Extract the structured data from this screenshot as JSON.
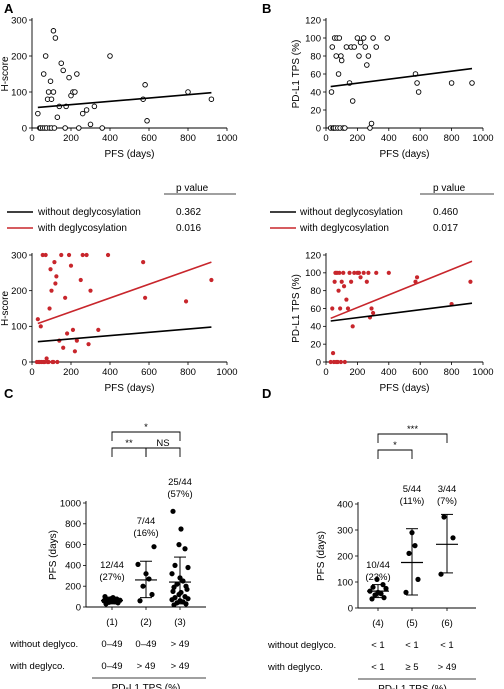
{
  "panels": [
    {
      "letter": "A"
    },
    {
      "letter": "B"
    },
    {
      "letter": "C"
    },
    {
      "letter": "D"
    }
  ],
  "legend": {
    "pvalue_header": "p value",
    "without_label": "without deglycosylation",
    "with_label": "with deglycosylation",
    "A": {
      "without_p": "0.362",
      "with_p": "0.016"
    },
    "B": {
      "without_p": "0.460",
      "with_p": "0.017"
    }
  },
  "colors": {
    "black": "#000000",
    "red": "#c8262c"
  },
  "chart_data": [
    {
      "id": "A-top",
      "type": "scatter",
      "xlabel": "PFS (days)",
      "ylabel": "H-score",
      "xlim": [
        0,
        1000
      ],
      "ylim": [
        0,
        300
      ],
      "xticks": [
        0,
        200,
        400,
        600,
        800,
        1000
      ],
      "yticks": [
        0,
        100,
        200,
        300
      ],
      "marker": "open",
      "points": [
        [
          30,
          40
        ],
        [
          40,
          0
        ],
        [
          45,
          0
        ],
        [
          55,
          0
        ],
        [
          60,
          150
        ],
        [
          65,
          0
        ],
        [
          70,
          200
        ],
        [
          75,
          0
        ],
        [
          80,
          80
        ],
        [
          85,
          100
        ],
        [
          90,
          0
        ],
        [
          95,
          130
        ],
        [
          100,
          0
        ],
        [
          100,
          80
        ],
        [
          110,
          100
        ],
        [
          110,
          270
        ],
        [
          115,
          0
        ],
        [
          120,
          250
        ],
        [
          130,
          30
        ],
        [
          140,
          60
        ],
        [
          150,
          180
        ],
        [
          160,
          160
        ],
        [
          170,
          0
        ],
        [
          175,
          60
        ],
        [
          190,
          140
        ],
        [
          200,
          90
        ],
        [
          210,
          100
        ],
        [
          220,
          100
        ],
        [
          230,
          150
        ],
        [
          240,
          0
        ],
        [
          260,
          40
        ],
        [
          280,
          50
        ],
        [
          300,
          10
        ],
        [
          320,
          60
        ],
        [
          360,
          0
        ],
        [
          400,
          200
        ],
        [
          570,
          80
        ],
        [
          580,
          120
        ],
        [
          590,
          20
        ],
        [
          800,
          100
        ],
        [
          920,
          80
        ]
      ],
      "fit": {
        "x": [
          30,
          920
        ],
        "y": [
          57,
          98
        ]
      }
    },
    {
      "id": "B-top",
      "type": "scatter",
      "xlabel": "PFS (days)",
      "ylabel": "PD-L1 TPS (%)",
      "xlim": [
        0,
        1000
      ],
      "ylim": [
        0,
        120
      ],
      "xticks": [
        0,
        200,
        400,
        600,
        800,
        1000
      ],
      "yticks": [
        0,
        20,
        40,
        60,
        80,
        100,
        120
      ],
      "marker": "open",
      "points": [
        [
          30,
          0
        ],
        [
          35,
          40
        ],
        [
          40,
          90
        ],
        [
          45,
          0
        ],
        [
          50,
          0
        ],
        [
          55,
          100
        ],
        [
          60,
          0
        ],
        [
          65,
          80
        ],
        [
          70,
          100
        ],
        [
          75,
          0
        ],
        [
          80,
          60
        ],
        [
          85,
          100
        ],
        [
          90,
          0
        ],
        [
          95,
          80
        ],
        [
          100,
          75
        ],
        [
          110,
          0
        ],
        [
          120,
          0
        ],
        [
          130,
          90
        ],
        [
          150,
          50
        ],
        [
          160,
          90
        ],
        [
          170,
          30
        ],
        [
          180,
          90
        ],
        [
          200,
          100
        ],
        [
          210,
          80
        ],
        [
          220,
          95
        ],
        [
          240,
          100
        ],
        [
          250,
          90
        ],
        [
          260,
          70
        ],
        [
          270,
          80
        ],
        [
          280,
          0
        ],
        [
          290,
          5
        ],
        [
          300,
          100
        ],
        [
          320,
          90
        ],
        [
          390,
          100
        ],
        [
          570,
          60
        ],
        [
          580,
          50
        ],
        [
          590,
          40
        ],
        [
          800,
          50
        ],
        [
          930,
          50
        ]
      ],
      "fit": {
        "x": [
          30,
          930
        ],
        "y": [
          46,
          66
        ]
      }
    },
    {
      "id": "A-bottom",
      "type": "scatter",
      "xlabel": "PFS (days)",
      "ylabel": "H-score",
      "xlim": [
        0,
        1000
      ],
      "ylim": [
        0,
        300
      ],
      "xticks": [
        0,
        200,
        400,
        600,
        800,
        1000
      ],
      "yticks": [
        0,
        100,
        200,
        300
      ],
      "marker": "filled",
      "points": [
        [
          25,
          0
        ],
        [
          30,
          120
        ],
        [
          35,
          0
        ],
        [
          40,
          0
        ],
        [
          45,
          100
        ],
        [
          50,
          0
        ],
        [
          55,
          300
        ],
        [
          60,
          0
        ],
        [
          65,
          0
        ],
        [
          70,
          300
        ],
        [
          75,
          10
        ],
        [
          80,
          0
        ],
        [
          85,
          0
        ],
        [
          90,
          150
        ],
        [
          95,
          260
        ],
        [
          100,
          200
        ],
        [
          105,
          0
        ],
        [
          110,
          0
        ],
        [
          115,
          280
        ],
        [
          120,
          220
        ],
        [
          125,
          240
        ],
        [
          130,
          0
        ],
        [
          140,
          60
        ],
        [
          150,
          300
        ],
        [
          160,
          40
        ],
        [
          170,
          180
        ],
        [
          180,
          80
        ],
        [
          190,
          300
        ],
        [
          200,
          270
        ],
        [
          210,
          90
        ],
        [
          220,
          30
        ],
        [
          230,
          60
        ],
        [
          250,
          230
        ],
        [
          260,
          300
        ],
        [
          280,
          300
        ],
        [
          290,
          50
        ],
        [
          300,
          200
        ],
        [
          340,
          90
        ],
        [
          390,
          300
        ],
        [
          570,
          280
        ],
        [
          580,
          180
        ],
        [
          790,
          170
        ],
        [
          920,
          230
        ]
      ],
      "fit_without": {
        "x": [
          30,
          920
        ],
        "y": [
          57,
          98
        ]
      },
      "fit_with": {
        "x": [
          30,
          920
        ],
        "y": [
          108,
          280
        ]
      }
    },
    {
      "id": "B-bottom",
      "type": "scatter",
      "xlabel": "PFS (days)",
      "ylabel": "PD-L1 TPS (%)",
      "xlim": [
        0,
        1000
      ],
      "ylim": [
        0,
        120
      ],
      "xticks": [
        0,
        200,
        400,
        600,
        800,
        1000
      ],
      "yticks": [
        0,
        20,
        40,
        60,
        80,
        100,
        120
      ],
      "marker": "filled",
      "points": [
        [
          30,
          0
        ],
        [
          40,
          60
        ],
        [
          45,
          10
        ],
        [
          50,
          0
        ],
        [
          55,
          90
        ],
        [
          60,
          100
        ],
        [
          65,
          0
        ],
        [
          70,
          100
        ],
        [
          75,
          0
        ],
        [
          80,
          80
        ],
        [
          85,
          100
        ],
        [
          90,
          60
        ],
        [
          95,
          0
        ],
        [
          100,
          90
        ],
        [
          110,
          100
        ],
        [
          115,
          85
        ],
        [
          120,
          0
        ],
        [
          130,
          70
        ],
        [
          140,
          60
        ],
        [
          150,
          100
        ],
        [
          160,
          90
        ],
        [
          170,
          40
        ],
        [
          180,
          100
        ],
        [
          200,
          100
        ],
        [
          210,
          100
        ],
        [
          220,
          95
        ],
        [
          240,
          100
        ],
        [
          260,
          90
        ],
        [
          270,
          100
        ],
        [
          280,
          50
        ],
        [
          290,
          60
        ],
        [
          300,
          55
        ],
        [
          320,
          100
        ],
        [
          400,
          100
        ],
        [
          570,
          90
        ],
        [
          580,
          95
        ],
        [
          800,
          65
        ],
        [
          920,
          90
        ]
      ],
      "fit_without": {
        "x": [
          30,
          930
        ],
        "y": [
          46,
          66
        ]
      },
      "fit_with": {
        "x": [
          30,
          930
        ],
        "y": [
          49,
          113
        ]
      }
    },
    {
      "id": "C",
      "type": "dot-plot",
      "ylabel": "PFS (days)",
      "ylim": [
        0,
        1000
      ],
      "yticks": [
        0,
        200,
        400,
        600,
        800,
        1000
      ],
      "groups": [
        {
          "label": "(1)",
          "frac": "12/44",
          "pct": "(27%)",
          "without": "0–49",
          "with": "0–49",
          "values": [
            30,
            40,
            45,
            50,
            55,
            60,
            65,
            70,
            75,
            80,
            90,
            100
          ],
          "mean": 62,
          "sd_low": 30,
          "sd_high": 95
        },
        {
          "label": "(2)",
          "frac": "7/44",
          "pct": "(16%)",
          "without": "0–49",
          "with": "> 49",
          "values": [
            60,
            120,
            200,
            270,
            320,
            410,
            580
          ],
          "mean": 260,
          "sd_low": 90,
          "sd_high": 440
        },
        {
          "label": "(3)",
          "frac": "25/44",
          "pct": "(57%)",
          "without": "> 49",
          "with": "> 49",
          "values": [
            20,
            30,
            40,
            50,
            60,
            70,
            80,
            90,
            100,
            120,
            140,
            150,
            170,
            190,
            200,
            220,
            250,
            280,
            320,
            380,
            400,
            560,
            600,
            750,
            920
          ],
          "mean": 240,
          "sd_low": 30,
          "sd_high": 480
        }
      ],
      "brackets": [
        {
          "from": 0,
          "to": 1,
          "text": "**",
          "level": 0
        },
        {
          "from": 1,
          "to": 2,
          "text": "NS",
          "level": 0
        },
        {
          "from": 0,
          "to": 2,
          "text": "*",
          "level": 1
        }
      ],
      "row_without": "without deglyco.",
      "row_with": "with deglyco.",
      "xlabel": "PD-L1 TPS (%)"
    },
    {
      "id": "D",
      "type": "dot-plot",
      "ylabel": "PFS (days)",
      "ylim": [
        0,
        400
      ],
      "yticks": [
        0,
        100,
        200,
        300,
        400
      ],
      "groups": [
        {
          "label": "(4)",
          "frac": "10/44",
          "pct": "(23%)",
          "without": "< 1",
          "with": "< 1",
          "values": [
            35,
            40,
            50,
            55,
            60,
            65,
            75,
            80,
            90,
            110
          ],
          "mean": 65,
          "sd_low": 40,
          "sd_high": 90
        },
        {
          "label": "(5)",
          "frac": "5/44",
          "pct": "(11%)",
          "without": "< 1",
          "with": "≥ 5",
          "values": [
            60,
            110,
            210,
            240,
            290
          ],
          "mean": 175,
          "sd_low": 50,
          "sd_high": 305
        },
        {
          "label": "(6)",
          "frac": "3/44",
          "pct": "(7%)",
          "without": "< 1",
          "with": "> 49",
          "values": [
            130,
            270,
            350
          ],
          "mean": 245,
          "sd_low": 135,
          "sd_high": 360
        }
      ],
      "brackets": [
        {
          "from": 0,
          "to": 1,
          "text": "*",
          "level": 0
        },
        {
          "from": 0,
          "to": 2,
          "text": "***",
          "level": 1
        }
      ],
      "row_without": "without deglyco.",
      "row_with": "with deglyco.",
      "xlabel": "PD-L1 TPS (%)"
    }
  ]
}
